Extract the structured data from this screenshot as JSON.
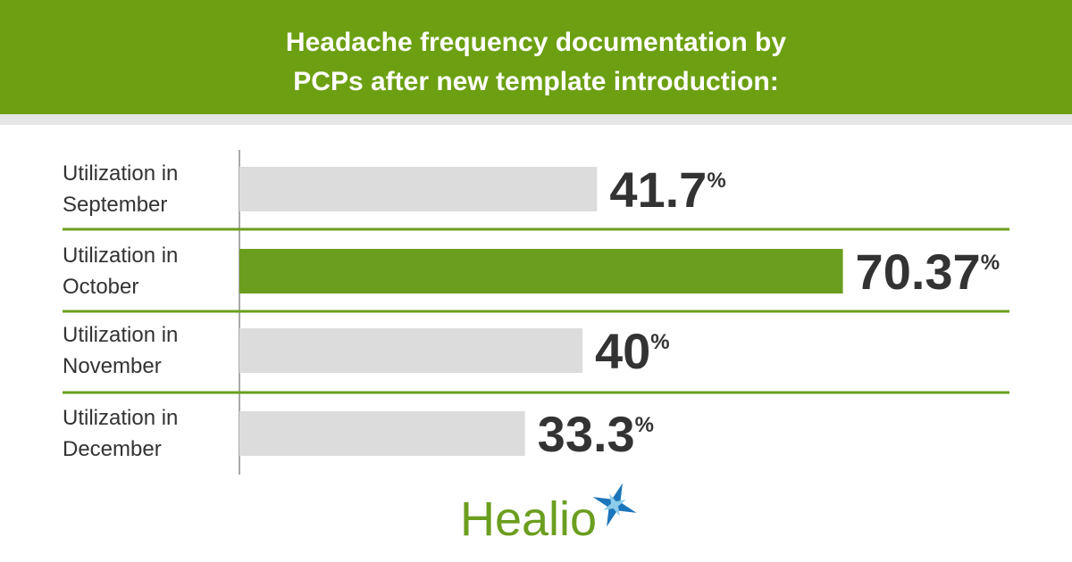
{
  "chart_data": {
    "type": "bar",
    "orientation": "horizontal",
    "title": "Headache frequency documentation by PCPs after new template introduction:",
    "categories": [
      "Utilization in September",
      "Utilization in October",
      "Utilization in November",
      "Utilization in December"
    ],
    "values": [
      41.7,
      70.37,
      40,
      33.3
    ],
    "value_labels": [
      "41.7%",
      "70.37%",
      "40%",
      "33.3%"
    ],
    "colors": [
      "#dcdcdc",
      "#6b9e1f",
      "#dcdcdc",
      "#dcdcdc"
    ],
    "xlim": [
      0,
      100
    ]
  },
  "logo": "Healio"
}
